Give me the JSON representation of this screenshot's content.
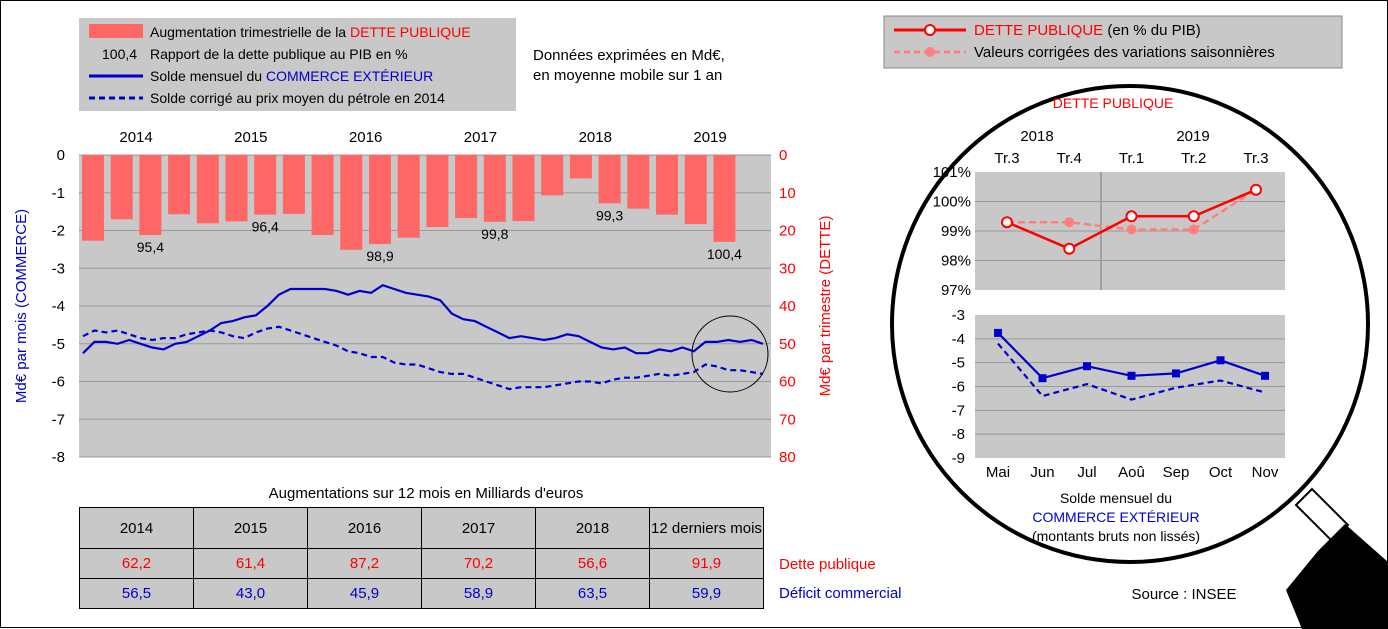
{
  "legend_left": {
    "item1_prefix": "Augmentation trimestrielle de la ",
    "item1_red": "DETTE PUBLIQUE",
    "item2_num": "100,4",
    "item2_text": "Rapport de la dette publique au PIB en %",
    "item3_prefix": "Solde mensuel du ",
    "item3_blue": "COMMERCE EXTÉRIEUR",
    "item4_text": "Solde corrigé au prix moyen du pétrole en  2014"
  },
  "note": {
    "line1": "Données exprimées en Md€,",
    "line2": "en moyenne mobile sur 1 an"
  },
  "legend_right": {
    "item1_red": "DETTE PUBLIQUE",
    "item1_suffix": "  (en % du PIB)",
    "item2": "Valeurs corrigées des variations saisonnières"
  },
  "colors": {
    "bar": "#ff6666",
    "red": "#ff0000",
    "blue": "#0000cc",
    "plot_bg": "#c8c8c8",
    "light_red": "#ff7f7f"
  },
  "chart_data": [
    {
      "type": "bar+line",
      "years": [
        "2014",
        "2015",
        "2016",
        "2017",
        "2018",
        "2019"
      ],
      "ylabel_left": "Md€ par mois (COMMERCE)",
      "ylabel_right": "Md€ par trimestre (DETTE)",
      "ylim_left": [
        -8,
        0
      ],
      "ylim_right": [
        0,
        80
      ],
      "yticks_left": [
        "0",
        "-1",
        "-2",
        "-3",
        "-4",
        "-5",
        "-6",
        "-7",
        "-8"
      ],
      "yticks_right": [
        "0",
        "10",
        "20",
        "30",
        "40",
        "50",
        "60",
        "70",
        "80"
      ],
      "dette_trimestrielle": [
        22.7,
        17.0,
        21.2,
        15.7,
        18.1,
        17.6,
        15.8,
        15.6,
        21.2,
        25.1,
        23.6,
        21.9,
        19.1,
        16.7,
        17.7,
        17.5,
        10.7,
        6.2,
        12.8,
        14.2,
        15.8,
        18.3,
        23.0
      ],
      "ratio_labels": [
        {
          "label": "95,4",
          "bar": 2
        },
        {
          "label": "96,4",
          "bar": 6
        },
        {
          "label": "98,9",
          "bar": 10
        },
        {
          "label": "99,8",
          "bar": 14
        },
        {
          "label": "99,3",
          "bar": 18
        },
        {
          "label": "100,4",
          "bar": 22
        }
      ],
      "solde_mensuel": [
        -5.25,
        -4.95,
        -4.95,
        -5.0,
        -4.9,
        -5.0,
        -5.1,
        -5.15,
        -5.0,
        -4.95,
        -4.8,
        -4.65,
        -4.45,
        -4.4,
        -4.3,
        -4.25,
        -4.0,
        -3.7,
        -3.55,
        -3.55,
        -3.55,
        -3.55,
        -3.6,
        -3.7,
        -3.6,
        -3.65,
        -3.45,
        -3.55,
        -3.65,
        -3.7,
        -3.75,
        -3.85,
        -4.2,
        -4.35,
        -4.4,
        -4.55,
        -4.7,
        -4.85,
        -4.8,
        -4.85,
        -4.9,
        -4.85,
        -4.75,
        -4.8,
        -4.95,
        -5.1,
        -5.15,
        -5.1,
        -5.25,
        -5.25,
        -5.15,
        -5.2,
        -5.1,
        -5.2,
        -4.95,
        -4.95,
        -4.9,
        -4.95,
        -4.9,
        -5.0
      ],
      "solde_corrige": [
        -4.8,
        -4.65,
        -4.7,
        -4.65,
        -4.75,
        -4.85,
        -4.9,
        -4.85,
        -4.85,
        -4.75,
        -4.7,
        -4.65,
        -4.7,
        -4.8,
        -4.85,
        -4.7,
        -4.6,
        -4.55,
        -4.65,
        -4.75,
        -4.85,
        -4.95,
        -5.05,
        -5.2,
        -5.25,
        -5.35,
        -5.35,
        -5.5,
        -5.55,
        -5.55,
        -5.65,
        -5.75,
        -5.8,
        -5.8,
        -5.9,
        -6.0,
        -6.1,
        -6.2,
        -6.15,
        -6.15,
        -6.15,
        -6.1,
        -6.05,
        -6.0,
        -6.0,
        -6.05,
        -5.95,
        -5.9,
        -5.9,
        -5.85,
        -5.8,
        -5.85,
        -5.8,
        -5.75,
        -5.55,
        -5.6,
        -5.7,
        -5.7,
        -5.75,
        -5.8
      ]
    },
    {
      "type": "line",
      "title": "DETTE PUBLIQUE",
      "year_labels": [
        "2018",
        "2019"
      ],
      "categories": [
        "Tr.3",
        "Tr.4",
        "Tr.1",
        "Tr.2",
        "Tr.3"
      ],
      "yticks": [
        "101%",
        "100%",
        "99%",
        "98%",
        "97%"
      ],
      "ylim": [
        97,
        101
      ],
      "series": [
        {
          "name": "DETTE PUBLIQUE  (en % du PIB)",
          "values": [
            99.3,
            98.4,
            99.5,
            99.5,
            100.4
          ]
        },
        {
          "name": "Valeurs corrigées des variations saisonnières",
          "values": [
            99.3,
            99.3,
            99.05,
            99.05,
            100.4
          ]
        }
      ]
    },
    {
      "type": "line",
      "categories": [
        "Mai",
        "Jun",
        "Jul",
        "Aoû",
        "Sep",
        "Oct",
        "Nov"
      ],
      "yticks": [
        "-3",
        "-4",
        "-5",
        "-6",
        "-7",
        "-8",
        "-9"
      ],
      "ylim": [
        -9,
        -3
      ],
      "caption": [
        "Solde mensuel du",
        "COMMERCE EXTÉRIEUR",
        "(montants bruts non lissés)"
      ],
      "series": [
        {
          "values": [
            -3.75,
            -5.65,
            -5.15,
            -5.55,
            -5.45,
            -4.9,
            -5.55
          ]
        },
        {
          "values": [
            -4.2,
            -6.4,
            -5.9,
            -6.55,
            -6.05,
            -5.75,
            -6.25
          ]
        }
      ]
    }
  ],
  "table": {
    "title": "Augmentations sur 12 mois en Milliards d'euros",
    "headers": [
      "2014",
      "2015",
      "2016",
      "2017",
      "2018",
      "12 derniers mois"
    ],
    "rows": [
      {
        "label": "Dette publique",
        "values": [
          "62,2",
          "61,4",
          "87,2",
          "70,2",
          "56,6",
          "91,9"
        ]
      },
      {
        "label": "Déficit commercial",
        "values": [
          "56,5",
          "43,0",
          "45,9",
          "58,9",
          "63,5",
          "59,9"
        ]
      }
    ]
  },
  "source": "Source : INSEE"
}
